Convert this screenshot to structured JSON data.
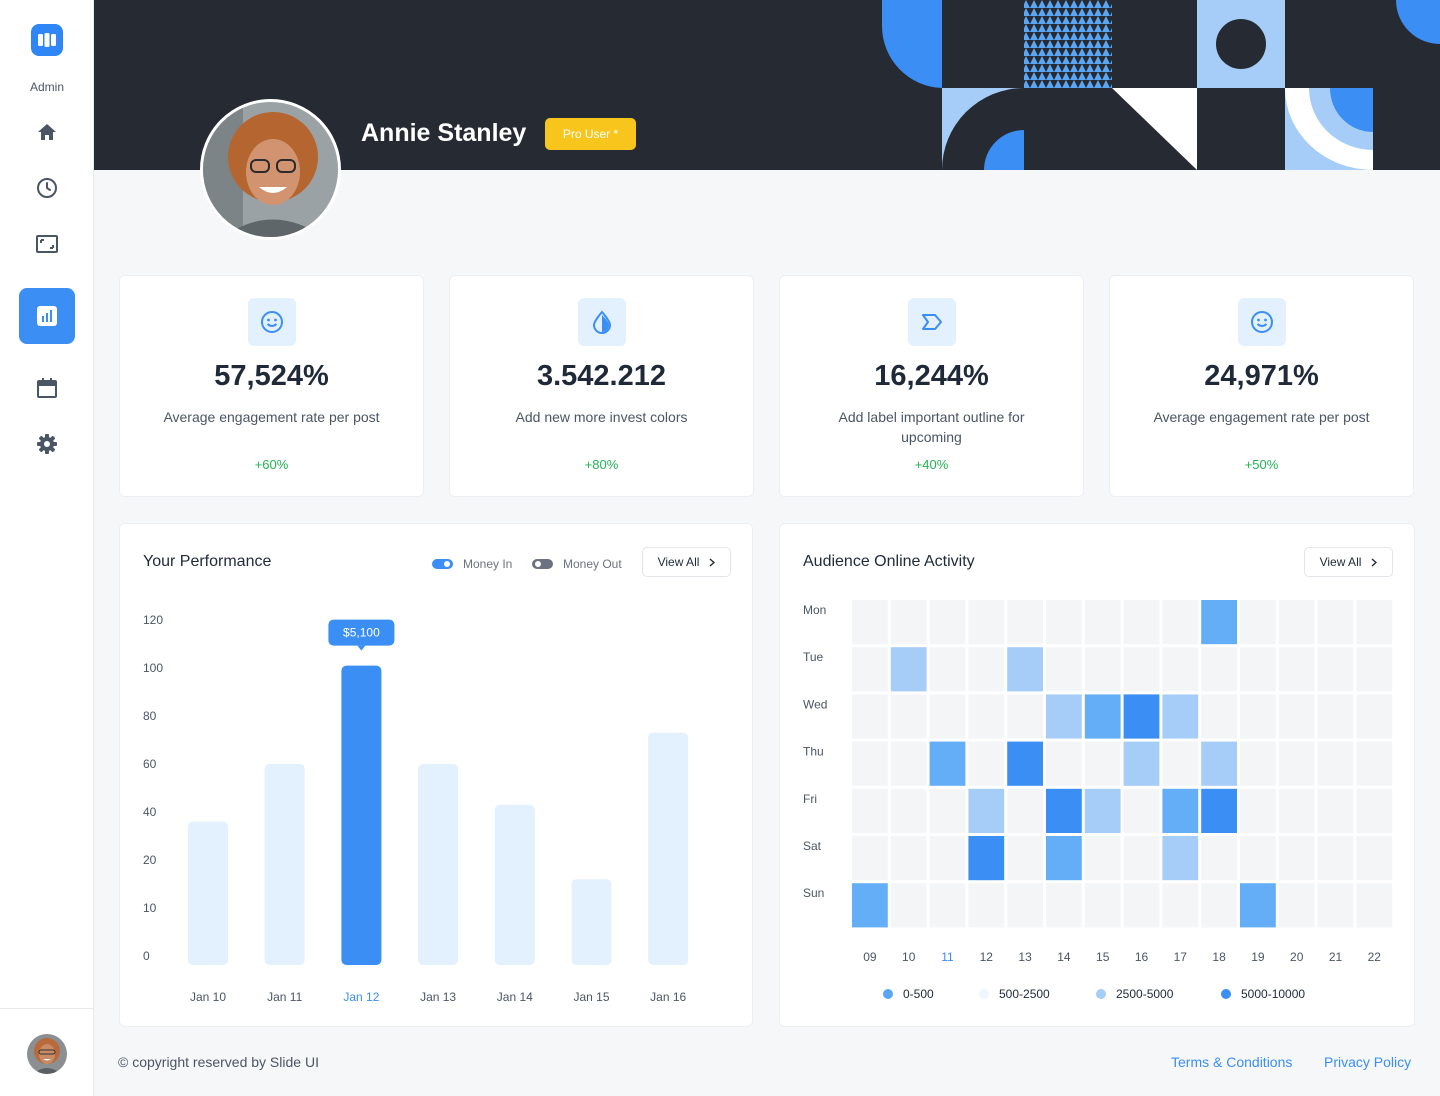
{
  "sidebar": {
    "logo_label": "Admin",
    "items": [
      {
        "icon": "home-icon"
      },
      {
        "icon": "clock-icon"
      },
      {
        "icon": "image-icon"
      },
      {
        "icon": "chart-icon",
        "active": true
      },
      {
        "icon": "calendar-icon"
      },
      {
        "icon": "gear-icon"
      }
    ]
  },
  "profile": {
    "name": "Annie Stanley",
    "badge": "Pro User *"
  },
  "stats": [
    {
      "icon": "smile-icon",
      "value": "57,524%",
      "label": "Average engagement rate per post",
      "delta": "+60%"
    },
    {
      "icon": "drop-icon",
      "value": "3.542.212",
      "label": "Add new more invest colors",
      "delta": "+80%"
    },
    {
      "icon": "label-icon",
      "value": "16,244%",
      "label": "Add label important outline for upcoming",
      "delta": "+40%"
    },
    {
      "icon": "smile-icon",
      "value": "24,971%",
      "label": "Average engagement rate per post",
      "delta": "+50%"
    }
  ],
  "performance": {
    "title": "Your Performance",
    "toggle_in": "Money In",
    "toggle_out": "Money Out",
    "view_all": "View All"
  },
  "activity": {
    "title": "Audience Online Activity",
    "view_all": "View All",
    "legend": [
      {
        "label": "0-500",
        "color": "#5aa6f5"
      },
      {
        "label": "500-2500",
        "color": "#eef5fc"
      },
      {
        "label": "2500-5000",
        "color": "#a6ccf8"
      },
      {
        "label": "5000-10000",
        "color": "#3b8ef3"
      }
    ]
  },
  "chart_data": [
    {
      "type": "bar",
      "title": "Your Performance",
      "categories": [
        "Jan 10",
        "Jan 11",
        "Jan 12",
        "Jan 13",
        "Jan 14",
        "Jan 15",
        "Jan 16"
      ],
      "values": [
        36,
        60,
        101,
        60,
        43,
        16,
        73
      ],
      "highlight_index": 2,
      "tooltip": "$5,100",
      "yticks": [
        "120",
        "100",
        "80",
        "60",
        "40",
        "20",
        "10",
        "0"
      ],
      "ylim": [
        0,
        120
      ]
    },
    {
      "type": "heatmap",
      "title": "Audience Online Activity",
      "rows": [
        "Mon",
        "Tue",
        "Wed",
        "Thu",
        "Fri",
        "Sat",
        "Sun"
      ],
      "columns": [
        "09",
        "10",
        "11",
        "12",
        "13",
        "14",
        "15",
        "16",
        "17",
        "18",
        "19",
        "20",
        "21",
        "22"
      ],
      "highlight_column": 2,
      "levels": [
        [
          0,
          0,
          0,
          0,
          0,
          0,
          0,
          0,
          0,
          2,
          0,
          0,
          0,
          0
        ],
        [
          0,
          1,
          0,
          0,
          1,
          0,
          0,
          0,
          0,
          0,
          0,
          0,
          0,
          0
        ],
        [
          0,
          0,
          0,
          0,
          0,
          1,
          2,
          3,
          1,
          0,
          0,
          0,
          0,
          0
        ],
        [
          0,
          0,
          2,
          0,
          3,
          0,
          0,
          1,
          0,
          1,
          0,
          0,
          0,
          0
        ],
        [
          0,
          0,
          0,
          1,
          0,
          3,
          1,
          0,
          2,
          3,
          0,
          0,
          0,
          0
        ],
        [
          0,
          0,
          0,
          3,
          0,
          2,
          0,
          0,
          1,
          0,
          0,
          0,
          0,
          0
        ],
        [
          2,
          0,
          0,
          0,
          0,
          0,
          0,
          0,
          0,
          0,
          2,
          0,
          0,
          0
        ]
      ],
      "level_colors": [
        "#f4f5f7",
        "#a6ccf8",
        "#64aef7",
        "#3b8ef3"
      ]
    }
  ],
  "footer": {
    "copyright": "© copyright reserved by Slide UI",
    "terms": "Terms & Conditions",
    "privacy": "Privacy Policy"
  }
}
